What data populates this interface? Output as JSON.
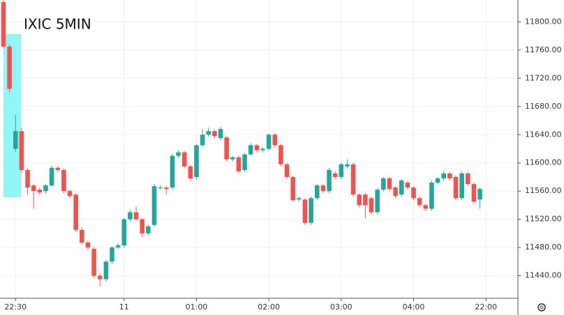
{
  "chart_data": {
    "type": "candlestick",
    "title": "IXIC 5MIN",
    "categories": [
      null,
      null,
      "22:30",
      null,
      null,
      null,
      null,
      null,
      null,
      null,
      null,
      null,
      null,
      null,
      null,
      null,
      null,
      null,
      null,
      null,
      "11",
      null,
      null,
      null,
      null,
      null,
      null,
      null,
      null,
      null,
      null,
      null,
      "01:00",
      null,
      null,
      null,
      null,
      null,
      null,
      null,
      null,
      null,
      null,
      null,
      "02:00",
      null,
      null,
      null,
      null,
      null,
      null,
      null,
      null,
      null,
      null,
      null,
      "03:00",
      null,
      null,
      null,
      null,
      null,
      null,
      null,
      null,
      null,
      null,
      null,
      "04:00",
      null,
      null,
      null,
      null,
      null,
      null,
      null,
      null,
      null,
      null,
      null,
      "22:00"
    ],
    "open": [
      11828,
      11765,
      11620,
      11645,
      11590,
      11568,
      11562,
      11560,
      11568,
      11593,
      11590,
      11560,
      11555,
      11505,
      11487,
      11478,
      11440,
      11435,
      11460,
      11480,
      11483,
      11520,
      11530,
      11520,
      11500,
      11512,
      11565,
      11565,
      11565,
      11610,
      11615,
      11595,
      11580,
      11625,
      11640,
      11645,
      11635,
      11636,
      11605,
      11608,
      11590,
      11612,
      11625,
      11618,
      11620,
      11640,
      11625,
      11598,
      11580,
      11548,
      11548,
      11515,
      11550,
      11568,
      11560,
      11585,
      11580,
      11595,
      11598,
      11555,
      11555,
      11550,
      11530,
      11562,
      11578,
      11565,
      11555,
      11572,
      11565,
      11550,
      11540,
      11535,
      11572,
      11578,
      11585,
      11580,
      11550,
      11585,
      11570,
      11548,
      null
    ],
    "high": [
      11831,
      11768,
      11668,
      11650,
      11592,
      11570,
      11565,
      11570,
      11596,
      11595,
      11592,
      11562,
      11557,
      11508,
      11490,
      11481,
      11443,
      11462,
      11482,
      11486,
      11522,
      11533,
      11538,
      11522,
      11512,
      11570,
      11568,
      11567,
      11613,
      11618,
      11617,
      11597,
      11627,
      11648,
      11650,
      11647,
      11651,
      11638,
      11610,
      11610,
      11614,
      11628,
      11627,
      11622,
      11642,
      11642,
      11627,
      11600,
      11582,
      11552,
      11550,
      11552,
      11570,
      11570,
      11593,
      11588,
      11600,
      11605,
      11600,
      11557,
      11557,
      11552,
      11564,
      11580,
      11580,
      11567,
      11577,
      11574,
      11567,
      11552,
      11542,
      11575,
      11580,
      11588,
      11587,
      11582,
      11588,
      11587,
      11572,
      11565,
      null
    ],
    "low": [
      11762,
      11700,
      11615,
      11585,
      11555,
      11535,
      11555,
      11556,
      11566,
      11587,
      11557,
      11550,
      11502,
      11484,
      11476,
      11437,
      11425,
      11432,
      11457,
      11478,
      11480,
      11517,
      11518,
      11494,
      11497,
      11509,
      11562,
      11555,
      11562,
      11607,
      11592,
      11575,
      11577,
      11622,
      11637,
      11635,
      11632,
      11602,
      11602,
      11585,
      11587,
      11610,
      11615,
      11615,
      11617,
      11622,
      11595,
      11577,
      11545,
      11545,
      11512,
      11512,
      11547,
      11557,
      11557,
      11577,
      11577,
      11592,
      11552,
      11537,
      11522,
      11527,
      11527,
      11560,
      11560,
      11550,
      11552,
      11562,
      11547,
      11537,
      11532,
      11532,
      11570,
      11575,
      11575,
      11547,
      11547,
      11567,
      11542,
      11535,
      null
    ],
    "close": [
      11765,
      11705,
      11645,
      11590,
      11565,
      11560,
      11558,
      11568,
      11593,
      11590,
      11560,
      11553,
      11505,
      11487,
      11480,
      11440,
      11435,
      11460,
      11480,
      11483,
      11520,
      11530,
      11520,
      11500,
      11510,
      11567,
      11565,
      11563,
      11610,
      11615,
      11595,
      11578,
      11625,
      11640,
      11645,
      11638,
      11648,
      11605,
      11608,
      11588,
      11612,
      11625,
      11618,
      11620,
      11640,
      11625,
      11598,
      11580,
      11547,
      11550,
      11515,
      11550,
      11568,
      11560,
      11590,
      11580,
      11598,
      11598,
      11555,
      11540,
      11540,
      11530,
      11562,
      11578,
      11563,
      11553,
      11575,
      11565,
      11550,
      11540,
      11535,
      11572,
      11578,
      11585,
      11578,
      11550,
      11585,
      11570,
      11545,
      11563,
      null
    ],
    "up_color": "#26a69a",
    "down_color": "#ef5350",
    "ylim": [
      11408,
      11831
    ],
    "yticks": [
      {
        "value": 11440,
        "label": "11440.00"
      },
      {
        "value": 11480,
        "label": "11480.00"
      },
      {
        "value": 11520,
        "label": "11520.00"
      },
      {
        "value": 11560,
        "label": "11560.00"
      },
      {
        "value": 11600,
        "label": "11600.00"
      },
      {
        "value": 11640,
        "label": "11640.00"
      },
      {
        "value": 11680,
        "label": "11680.00"
      },
      {
        "value": 11720,
        "label": "11720.00"
      },
      {
        "value": 11760,
        "label": "11760.00"
      },
      {
        "value": 11800,
        "label": "11800.00"
      }
    ],
    "grid": true
  }
}
